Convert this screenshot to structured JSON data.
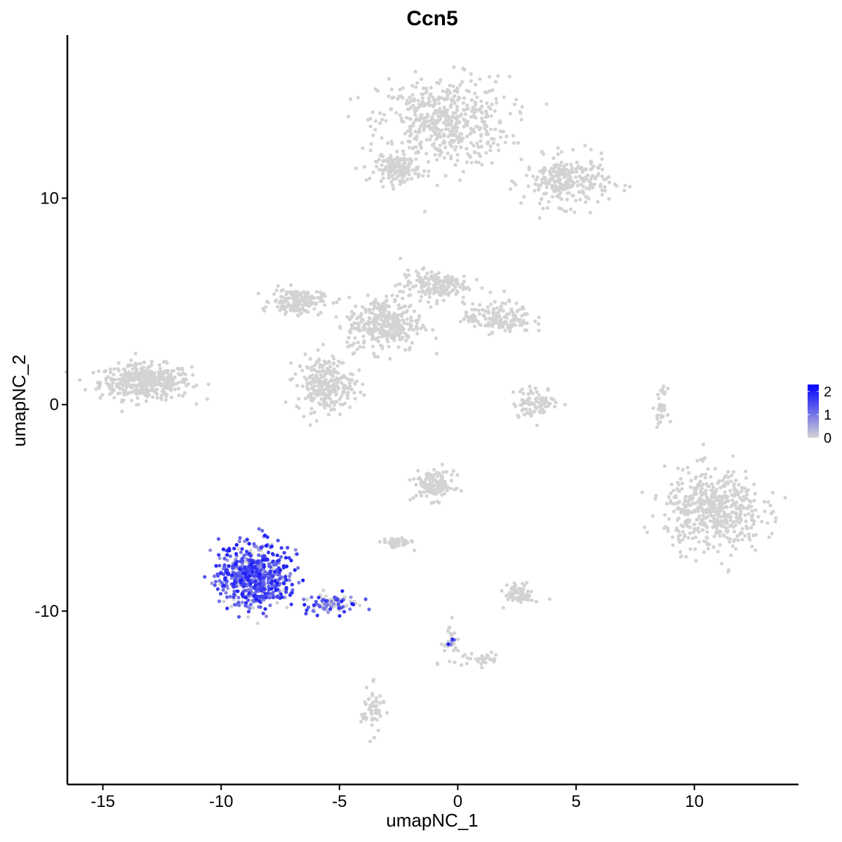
{
  "chart_data": {
    "type": "scatter",
    "title": "Ccn5",
    "xlabel": "umapNC_1",
    "ylabel": "umapNC_2",
    "xlim": [
      -16.5,
      14.4
    ],
    "ylim": [
      -18.4,
      17.9
    ],
    "x_ticks": [
      -15,
      -10,
      -5,
      0,
      5,
      10
    ],
    "y_ticks": [
      -10,
      0,
      10
    ],
    "grid": false,
    "legend": {
      "position": "right",
      "type": "colorbar",
      "ticks": [
        0,
        1,
        2
      ],
      "max": 2.3,
      "color_low": "#d3d3d3",
      "color_high": "#0000ff"
    },
    "colors": {
      "low": "#d3d3d3",
      "high": "#0000ff"
    },
    "clusters": [
      {
        "center": [
          -13.2,
          1.1
        ],
        "spread": [
          1.6,
          0.7
        ],
        "n": 420,
        "expr": 0
      },
      {
        "center": [
          -0.6,
          13.7
        ],
        "spread": [
          2.3,
          1.8
        ],
        "n": 520,
        "expr": 0
      },
      {
        "center": [
          -2.5,
          11.4
        ],
        "spread": [
          0.8,
          0.5
        ],
        "n": 150,
        "expr": 0
      },
      {
        "center": [
          4.6,
          10.8
        ],
        "spread": [
          1.5,
          1.0
        ],
        "n": 260,
        "expr": 0
      },
      {
        "center": [
          -6.8,
          5.0
        ],
        "spread": [
          0.9,
          0.5
        ],
        "n": 160,
        "expr": 0
      },
      {
        "center": [
          -3.1,
          3.9
        ],
        "spread": [
          1.3,
          1.1
        ],
        "n": 330,
        "expr": 0
      },
      {
        "center": [
          -5.6,
          1.0
        ],
        "spread": [
          1.0,
          1.1
        ],
        "n": 260,
        "expr": 0
      },
      {
        "center": [
          -1.0,
          5.8
        ],
        "spread": [
          1.2,
          0.6
        ],
        "n": 170,
        "expr": 0
      },
      {
        "center": [
          1.7,
          4.2
        ],
        "spread": [
          1.2,
          0.6
        ],
        "n": 160,
        "expr": 0
      },
      {
        "center": [
          3.3,
          0.1
        ],
        "spread": [
          0.8,
          0.6
        ],
        "n": 90,
        "expr": 0
      },
      {
        "center": [
          10.8,
          -5.1
        ],
        "spread": [
          1.7,
          1.6
        ],
        "n": 520,
        "expr": 0
      },
      {
        "center": [
          8.6,
          -0.1
        ],
        "spread": [
          0.2,
          0.7
        ],
        "n": 35,
        "expr": 0
      },
      {
        "center": [
          -1.0,
          -3.9
        ],
        "spread": [
          0.7,
          0.6
        ],
        "n": 130,
        "expr": 0
      },
      {
        "center": [
          -2.6,
          -6.7
        ],
        "spread": [
          0.5,
          0.2
        ],
        "n": 55,
        "expr": 0
      },
      {
        "center": [
          2.6,
          -9.2
        ],
        "spread": [
          0.5,
          0.4
        ],
        "n": 70,
        "expr": 0
      },
      {
        "center": [
          0.8,
          -12.3
        ],
        "spread": [
          1.0,
          0.4
        ],
        "n": 35,
        "expr": 0
      },
      {
        "center": [
          -3.6,
          -14.8
        ],
        "spread": [
          0.4,
          0.9
        ],
        "n": 55,
        "expr": 0
      },
      {
        "center": [
          -8.6,
          -8.3
        ],
        "spread": [
          1.2,
          1.3
        ],
        "n": 620,
        "expr": 0.85
      },
      {
        "center": [
          -5.4,
          -9.6
        ],
        "spread": [
          1.0,
          0.4
        ],
        "n": 90,
        "expr": 0.6
      },
      {
        "center": [
          -0.3,
          -11.3
        ],
        "spread": [
          0.3,
          0.6
        ],
        "n": 30,
        "expr": 0.3
      }
    ]
  }
}
